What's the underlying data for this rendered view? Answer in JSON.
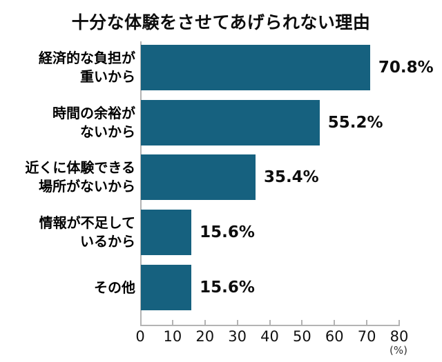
{
  "chart_data": {
    "type": "bar",
    "orientation": "horizontal",
    "title": "十分な体験をさせてあげられない理由",
    "categories": [
      "経済的な負担が\n重いから",
      "時間の余裕が\nないから",
      "近くに体験できる\n場所がないから",
      "情報が不足して\nいるから",
      "その他"
    ],
    "values": [
      70.8,
      55.2,
      35.4,
      15.6,
      15.6
    ],
    "value_labels": [
      "70.8%",
      "55.2%",
      "35.4%",
      "15.6%",
      "15.6%"
    ],
    "xlabel": "(%)",
    "xlim": [
      0,
      80
    ],
    "xticks": [
      0,
      10,
      20,
      30,
      40,
      50,
      60,
      70,
      80
    ],
    "grid": false,
    "legend": "none",
    "bar_color": "#16617f",
    "axis_color": "#b3b3b3",
    "text_color": "#0d0d0d"
  }
}
